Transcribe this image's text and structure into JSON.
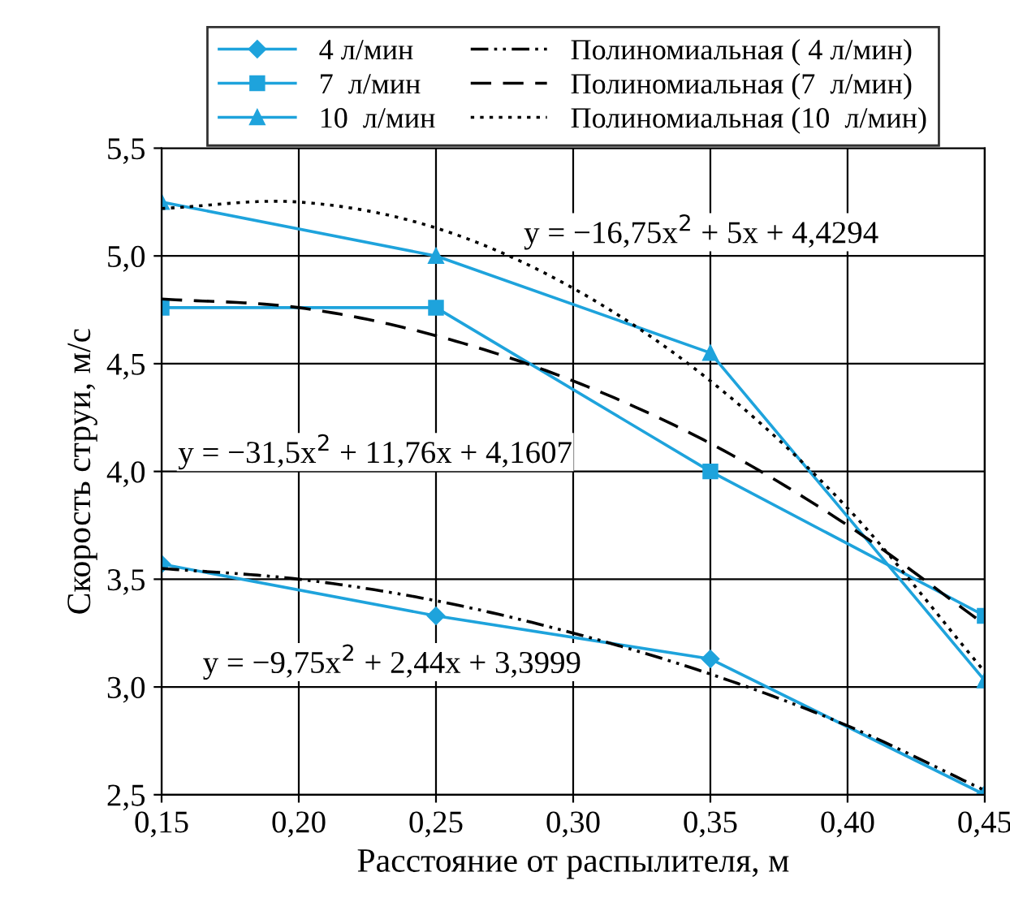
{
  "chart_data": {
    "type": "line",
    "xlabel": "Расстояние от распылителя, м",
    "ylabel": "Скорость струи, м/с",
    "x": [
      0.15,
      0.25,
      0.35,
      0.45
    ],
    "series": [
      {
        "name": "4 л/мин",
        "color": "#1ea3dc",
        "marker": "diamond",
        "line_style": "solid",
        "values": [
          3.57,
          3.33,
          3.13,
          2.5
        ]
      },
      {
        "name": "7  л/мин",
        "color": "#1ea3dc",
        "marker": "square",
        "line_style": "solid",
        "values": [
          4.76,
          4.76,
          4.0,
          3.33
        ]
      },
      {
        "name": "10  л/мин",
        "color": "#1ea3dc",
        "marker": "triangle",
        "line_style": "solid",
        "values": [
          5.25,
          5.0,
          4.55,
          3.03
        ]
      },
      {
        "name": "Полиномиальная ( 4 л/мин)",
        "color": "#000000",
        "marker": "none",
        "line_style": "dashdot",
        "x": [
          0.15,
          0.2,
          0.25,
          0.3,
          0.35,
          0.4,
          0.45
        ],
        "values": [
          3.55,
          3.5,
          3.4,
          3.25,
          3.06,
          2.82,
          2.52
        ]
      },
      {
        "name": "Полиномиальная (7  л/мин)",
        "color": "#000000",
        "marker": "none",
        "line_style": "dashed",
        "x": [
          0.15,
          0.2,
          0.25,
          0.3,
          0.35,
          0.4,
          0.45
        ],
        "values": [
          4.8,
          4.76,
          4.63,
          4.42,
          4.13,
          3.75,
          3.29
        ]
      },
      {
        "name": "Полиномиальная (10  л/мин)",
        "color": "#000000",
        "marker": "none",
        "line_style": "dotted",
        "x": [
          0.15,
          0.2,
          0.25,
          0.3,
          0.35,
          0.4,
          0.45
        ],
        "values": [
          5.22,
          5.25,
          5.13,
          4.85,
          4.42,
          3.83,
          3.07
        ]
      }
    ],
    "xlim": [
      0.15,
      0.45
    ],
    "xticks": [
      {
        "value": 0.15,
        "label": "0,15"
      },
      {
        "value": 0.2,
        "label": "0,20"
      },
      {
        "value": 0.25,
        "label": "0,25"
      },
      {
        "value": 0.3,
        "label": "0,30"
      },
      {
        "value": 0.35,
        "label": "0,35"
      },
      {
        "value": 0.4,
        "label": "0,40"
      },
      {
        "value": 0.45,
        "label": "0,45"
      }
    ],
    "ylim": [
      2.5,
      5.5
    ],
    "yticks": [
      {
        "value": 2.5,
        "label": "2,5"
      },
      {
        "value": 3.0,
        "label": "3,0"
      },
      {
        "value": 3.5,
        "label": "3,5"
      },
      {
        "value": 4.0,
        "label": "4,0"
      },
      {
        "value": 4.5,
        "label": "4,5"
      },
      {
        "value": 5.0,
        "label": "5,0"
      },
      {
        "value": 5.5,
        "label": "5,5"
      }
    ],
    "grid": true,
    "legend": "top",
    "annotations": [
      "y = −16,75x$^{2}$ + 5x + 4,4294",
      "y = −31,5x$^{2}$ + 11,76x + 4,1607",
      "y = −9,75x$^{2}$ + 2,44x + 3,3999"
    ]
  }
}
